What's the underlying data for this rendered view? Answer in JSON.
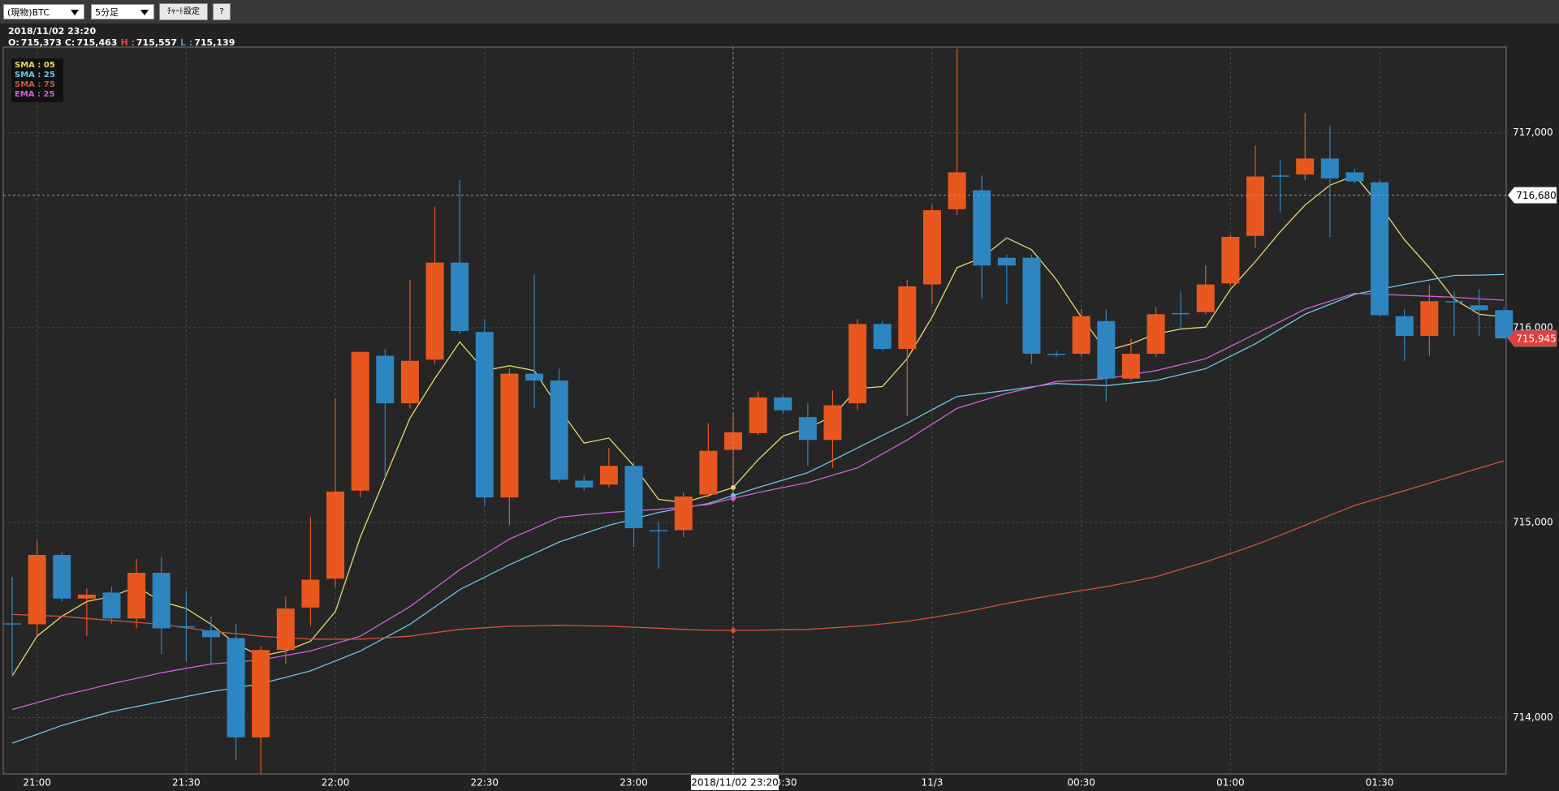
{
  "toolbar": {
    "product": "(現物)BTC",
    "timeframe": "5分足",
    "settings_button": "ﾁｬｰﾄ設定",
    "help_button": "?"
  },
  "readout": {
    "time": "2018/11/02 23:20",
    "fields": [
      {
        "key": "O:",
        "value": 715373,
        "label": "715,373",
        "color": "#ffffff"
      },
      {
        "key": "C:",
        "value": 715463,
        "label": "715,463",
        "color": "#ffffff"
      },
      {
        "key": "H :",
        "value": 715557,
        "label": "715,557",
        "color": "#e0503a"
      },
      {
        "key": "L :",
        "value": 715139,
        "label": "715,139",
        "color": "#4a90d0"
      }
    ]
  },
  "chart_data": {
    "type": "candlestick",
    "up_color": "#e8581e",
    "down_color": "#2e86c1",
    "categories": [
      null,
      "21:00",
      null,
      null,
      null,
      null,
      null,
      "21:30",
      null,
      null,
      null,
      null,
      null,
      "22:00",
      null,
      null,
      null,
      null,
      null,
      "22:30",
      null,
      null,
      null,
      null,
      null,
      "23:00",
      null,
      null,
      null,
      null,
      null,
      "23:30",
      null,
      null,
      null,
      null,
      null,
      "11/3",
      null,
      null,
      null,
      null,
      null,
      "00:30",
      null,
      null,
      null,
      null,
      null,
      "01:00",
      null,
      null,
      null,
      null,
      null,
      "01:30",
      null,
      null,
      null,
      null,
      null
    ],
    "open": [
      714483,
      714478,
      714834,
      714610,
      714641,
      714508,
      714742,
      714468,
      714447,
      714407,
      713898,
      714346,
      714564,
      714712,
      715164,
      715856,
      715612,
      715836,
      716334,
      715978,
      715129,
      715764,
      715729,
      715215,
      715195,
      715291,
      714961,
      714961,
      715144,
      715373,
      715459,
      715642,
      715541,
      715424,
      715612,
      716019,
      715891,
      716222,
      716608,
      716705,
      716359,
      716359,
      715866,
      715866,
      716034,
      715739,
      715866,
      716075,
      716080,
      716227,
      716471,
      716781,
      716786,
      716868,
      716797,
      716746,
      716059,
      715958,
      716136,
      716115,
      716090
    ],
    "high": [
      714722,
      714910,
      714849,
      714661,
      714671,
      714813,
      714824,
      714650,
      714519,
      714478,
      714366,
      714620,
      715027,
      715637,
      715876,
      715891,
      716247,
      716619,
      716756,
      716044,
      715790,
      716273,
      715790,
      715241,
      715383,
      715307,
      715002,
      715154,
      715510,
      715557,
      715673,
      715652,
      715612,
      715678,
      716044,
      716034,
      716247,
      716629,
      717432,
      716781,
      716375,
      716375,
      715881,
      716095,
      716095,
      715942,
      716105,
      716186,
      716319,
      716476,
      716934,
      716858,
      717102,
      717036,
      716817,
      716756,
      716095,
      716222,
      716186,
      716197,
      716105
    ],
    "low": [
      714213,
      714417,
      714595,
      714417,
      714478,
      714457,
      714325,
      714290,
      714274,
      713781,
      713715,
      714274,
      714468,
      714671,
      715129,
      715230,
      715586,
      715815,
      715968,
      715088,
      714986,
      715586,
      715205,
      715164,
      715180,
      714874,
      714763,
      714925,
      715129,
      715139,
      715449,
      715561,
      715291,
      715281,
      715576,
      715881,
      715546,
      716120,
      716578,
      716146,
      716120,
      715815,
      715851,
      715851,
      715622,
      715729,
      715851,
      715993,
      716069,
      716217,
      716410,
      716593,
      716756,
      716466,
      716741,
      716054,
      715830,
      715856,
      715958,
      715958,
      715942
    ],
    "close": [
      714483,
      714834,
      714610,
      714630,
      714508,
      714742,
      714457,
      714468,
      714412,
      713898,
      714346,
      714559,
      714707,
      715159,
      715876,
      715612,
      715830,
      716334,
      715983,
      715129,
      715764,
      715729,
      715220,
      715180,
      715291,
      714971,
      714961,
      715134,
      715368,
      715463,
      715642,
      715576,
      715424,
      715602,
      716019,
      715891,
      716212,
      716603,
      716797,
      716319,
      716319,
      715866,
      715866,
      716059,
      715739,
      715866,
      716069,
      716075,
      716222,
      716466,
      716776,
      716781,
      716868,
      716766,
      716751,
      716064,
      715958,
      716136,
      716136,
      716090,
      715945
    ],
    "series": [
      {
        "name": "SMA : 05",
        "color": "#e8d870",
        "values": [
          714213,
          714417,
          714519,
          714595,
          714620,
          714671,
          714595,
          714559,
          714478,
          714376,
          714315,
          714341,
          714391,
          714544,
          714925,
          715230,
          715536,
          715739,
          715927,
          715780,
          715805,
          715780,
          715586,
          715408,
          715434,
          715291,
          715119,
          715103,
          715139,
          715180,
          715322,
          715444,
          715485,
          715546,
          715688,
          715698,
          715841,
          716054,
          716308,
          716359,
          716461,
          716400,
          716247,
          716054,
          715881,
          715917,
          715968,
          715993,
          716003,
          716197,
          716339,
          716492,
          716629,
          716731,
          716781,
          716629,
          716451,
          716308,
          716146,
          716069,
          716054
        ]
      },
      {
        "name": "SMA : 25",
        "color": "#6ec6e8",
        "values": [
          713868,
          713913,
          713959,
          713995,
          714030,
          714056,
          714081,
          714107,
          714132,
          714152,
          714173,
          714206,
          714239,
          714290,
          714341,
          714409,
          714478,
          714567,
          714656,
          714719,
          714783,
          714841,
          714900,
          714943,
          714986,
          715019,
          715052,
          715075,
          715098,
          715139,
          715180,
          715218,
          715256,
          715319,
          715383,
          715447,
          715510,
          715579,
          715647,
          715663,
          715678,
          715696,
          715714,
          715708,
          715703,
          715716,
          715729,
          715759,
          715790,
          715853,
          715917,
          715993,
          716069,
          716120,
          716171,
          716197,
          716222,
          716245,
          716268,
          716270,
          716273
        ]
      },
      {
        "name": "SMA : 75",
        "color": "#d0553a",
        "values": [
          714529,
          714524,
          714519,
          714508,
          714498,
          714488,
          714478,
          714460,
          714442,
          714430,
          714417,
          714409,
          714402,
          714402,
          714402,
          714409,
          714417,
          714435,
          714452,
          714460,
          714468,
          714470,
          714473,
          714470,
          714468,
          714463,
          714458,
          714452,
          714447,
          714447,
          714447,
          714450,
          714452,
          714460,
          714468,
          714480,
          714493,
          714513,
          714534,
          714559,
          714585,
          714608,
          714630,
          714651,
          714671,
          714696,
          714722,
          714760,
          714798,
          714841,
          714885,
          714935,
          714986,
          715037,
          715088,
          715126,
          715164,
          715202,
          715241,
          715279,
          715317
        ]
      },
      {
        "name": "EMA : 25",
        "color": "#d060d8",
        "values": [
          714041,
          714076,
          714112,
          714142,
          714173,
          714201,
          714229,
          714252,
          714274,
          714285,
          714295,
          714318,
          714341,
          714379,
          714417,
          714493,
          714569,
          714663,
          714758,
          714836,
          714915,
          714971,
          715027,
          715040,
          715052,
          715060,
          715068,
          715080,
          715093,
          715124,
          715154,
          715180,
          715205,
          715243,
          715281,
          715352,
          715424,
          715505,
          715586,
          715625,
          715663,
          715693,
          715724,
          715731,
          715739,
          715759,
          715780,
          715810,
          715841,
          715904,
          715968,
          716031,
          716095,
          716136,
          716176,
          716171,
          716166,
          716161,
          716156,
          716148,
          716141
        ]
      }
    ],
    "ylim": [
      713710,
      717440
    ],
    "yticks": [
      {
        "value": 714000,
        "label": "714,000"
      },
      {
        "value": 715000,
        "label": "715,000"
      },
      {
        "value": 716000,
        "label": "716,000"
      },
      {
        "value": 717000,
        "label": "717,000"
      }
    ],
    "grid": true,
    "crosshair": {
      "label": "2018/11/02 23:20",
      "value": 716680,
      "value_label": "716,680"
    },
    "current_price": {
      "value": 715945,
      "label": "715,945",
      "color": "#e04040"
    }
  }
}
